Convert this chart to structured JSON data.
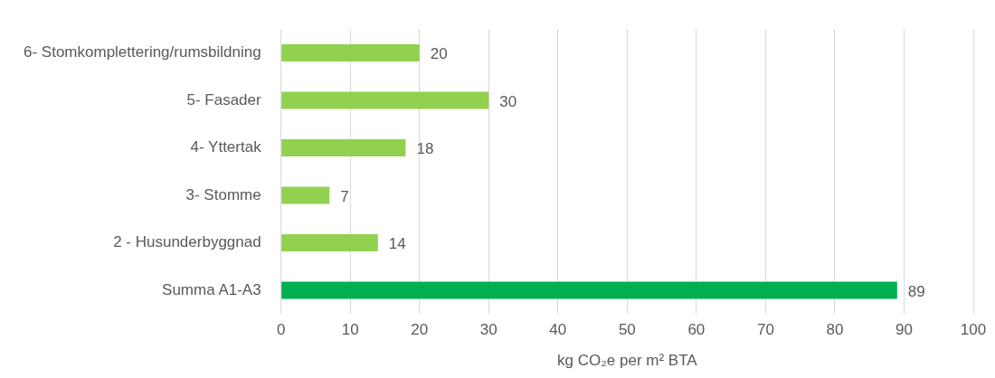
{
  "chart_data": {
    "type": "bar",
    "orientation": "horizontal",
    "xlabel": "kg CO₂e per m² BTA",
    "categories": [
      "6- Stomkomplettering/rumsbildning",
      "5- Fasader",
      "4- Yttertak",
      "3- Stomme",
      "2 - Husunderbyggnad",
      "Summa A1-A3"
    ],
    "values": [
      20,
      30,
      18,
      7,
      14,
      89
    ],
    "colors": [
      "#92d050",
      "#92d050",
      "#92d050",
      "#92d050",
      "#92d050",
      "#00b050"
    ],
    "xlim": [
      0,
      100
    ],
    "xticks": [
      0,
      10,
      20,
      30,
      40,
      50,
      60,
      70,
      80,
      90,
      100
    ],
    "grid": "x",
    "legend": false,
    "data_labels": true
  }
}
